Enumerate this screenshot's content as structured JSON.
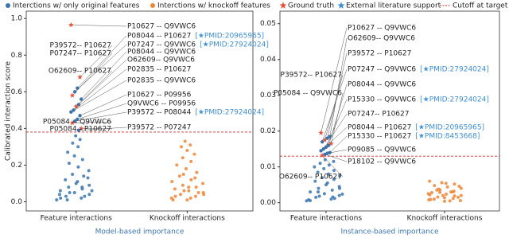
{
  "legend": [
    {
      "name": "Interctions w/ only original features",
      "color": "#3b75af",
      "marker": "circle"
    },
    {
      "name": "Interctions w/ knockoff features",
      "color": "#ef8636",
      "marker": "circle"
    },
    {
      "name": "Ground truth",
      "color": "#e8503a",
      "marker": "star"
    },
    {
      "name": "External literature support",
      "color": "#3d8fd6",
      "marker": "star"
    },
    {
      "name": "Cutoff at target FDR level",
      "color": "#d62728",
      "marker": "dash"
    }
  ],
  "chart_data": [
    {
      "type": "strip",
      "ylabel": "Calibrated interaction score",
      "xlabel": "Model-based importance",
      "xlabel_color": "#3b75af",
      "categories": [
        "Feature interactions",
        "Knockoff interactions"
      ],
      "ylim": [
        -0.05,
        1.04
      ],
      "yticks": [
        {
          "value": 0,
          "label": "0.0"
        },
        {
          "value": 0.2,
          "label": "0.2"
        },
        {
          "value": 0.4,
          "label": "0.4"
        },
        {
          "value": 0.6,
          "label": "0.6"
        },
        {
          "value": 0.8,
          "label": "0.8"
        },
        {
          "value": 1,
          "label": "1.0"
        }
      ],
      "cutoff": 0.38,
      "series": [
        {
          "name": "Interctions w/ only original features",
          "color": "#3b75af",
          "values": [
            0.01,
            0.02,
            0.03,
            0.04,
            0.05,
            0.06,
            0.07,
            0.08,
            0.09,
            0.1,
            0.02,
            0.03,
            0.05,
            0.06,
            0.11,
            0.12,
            0.14,
            0.15,
            0.17,
            0.19,
            0.21,
            0.23,
            0.25,
            0.27,
            0.3,
            0.32,
            0.34,
            0.36,
            0.04,
            0.08,
            0.01,
            0.13
          ]
        },
        {
          "name": "Interctions w/ knockoff features",
          "color": "#ef8636",
          "values": [
            0.01,
            0.02,
            0.03,
            0.04,
            0.05,
            0.06,
            0.07,
            0.08,
            0.09,
            0.1,
            0.02,
            0.03,
            0.05,
            0.06,
            0.11,
            0.12,
            0.14,
            0.16,
            0.18,
            0.2,
            0.22,
            0.24,
            0.26,
            0.28,
            0.3,
            0.31,
            0.33,
            0.04,
            0.08,
            0.01,
            0.13,
            0.15
          ]
        }
      ],
      "annotations": [
        {
          "label": "P10627 -- Q9VWC6",
          "value": 0.965,
          "marker": "star",
          "color": "#e8503a"
        },
        {
          "label": "P39572-- P10627",
          "value": 0.68,
          "marker": "star",
          "color": "#e8503a"
        },
        {
          "label": "P08044 -- P10627",
          "pmid": "[★PMID:20965965]",
          "value": 0.62,
          "marker": "circle",
          "color": "#3b75af"
        },
        {
          "label": "P07247 -- Q9VWC6",
          "pmid": "[★PMID:27924024]",
          "value": 0.6,
          "marker": "circle",
          "color": "#3b75af"
        },
        {
          "label": "P07247-- P10627",
          "value": 0.58,
          "marker": "star",
          "color": "#e8503a"
        },
        {
          "label": "P08044 -- Q9VWC6",
          "value": 0.56,
          "marker": "circle",
          "color": "#3b75af"
        },
        {
          "label": "O62609-- Q9VWC6",
          "value": 0.53,
          "marker": "circle",
          "color": "#3b75af"
        },
        {
          "label": "O62609-- P10627",
          "value": 0.52,
          "marker": "star",
          "color": "#e8503a"
        },
        {
          "label": "P02835 -- P10627",
          "value": 0.5,
          "marker": "circle",
          "color": "#3b75af"
        },
        {
          "label": "P02835 -- Q9VWC6",
          "value": 0.49,
          "marker": "circle",
          "color": "#3b75af"
        },
        {
          "label": "P10627 -- P09956",
          "value": 0.47,
          "marker": "circle",
          "color": "#3b75af"
        },
        {
          "label": "Q9VWC6 -- P09956",
          "value": 0.45,
          "marker": "circle",
          "color": "#3b75af"
        },
        {
          "label": "P39572 -- P08044",
          "pmid": "[★PMID:27924024]",
          "value": 0.44,
          "marker": "circle",
          "color": "#3b75af"
        },
        {
          "label": "P05084 -- Q9VWC6",
          "value": 0.43,
          "marker": "star",
          "color": "#e8503a"
        },
        {
          "label": "P05084-- P10627",
          "value": 0.4,
          "marker": "star",
          "color": "#e8503a"
        },
        {
          "label": "P39572 -- P07247",
          "value": 0.39,
          "marker": "circle",
          "color": "#3b75af"
        }
      ]
    },
    {
      "type": "strip",
      "xlabel": "Instance-based importance",
      "xlabel_color": "#3b75af",
      "categories": [
        "Feature interactions",
        "Knockoff interactions"
      ],
      "ylim": [
        -0.0023,
        0.0535
      ],
      "yticks": [
        {
          "value": 0,
          "label": "0.00"
        },
        {
          "value": 0.01,
          "label": "0.01"
        },
        {
          "value": 0.02,
          "label": "0.02"
        },
        {
          "value": 0.03,
          "label": "0.03"
        },
        {
          "value": 0.04,
          "label": "0.04"
        },
        {
          "value": 0.05,
          "label": "0.05"
        }
      ],
      "cutoff": 0.013,
      "series": [
        {
          "name": "Interctions w/ only original features",
          "color": "#3b75af",
          "values": [
            0.0005,
            0.001,
            0.0015,
            0.002,
            0.0025,
            0.003,
            0.0035,
            0.004,
            0.0045,
            0.005,
            0.0006,
            0.0012,
            0.0018,
            0.0024,
            0.0055,
            0.006,
            0.0065,
            0.007,
            0.0075,
            0.008,
            0.0085,
            0.009,
            0.0095,
            0.01,
            0.0105,
            0.011,
            0.0115,
            0.012,
            0.0008,
            0.0016,
            0.003,
            0.004
          ]
        },
        {
          "name": "Interctions w/ knockoff features",
          "color": "#ef8636",
          "values": [
            0.0004,
            0.0008,
            0.0012,
            0.0016,
            0.002,
            0.0024,
            0.0028,
            0.0032,
            0.0036,
            0.004,
            0.0044,
            0.0048,
            0.0052,
            0.0056,
            0.006,
            0.0005,
            0.001,
            0.0015,
            0.002,
            0.0025,
            0.003,
            0.0035,
            0.0006,
            0.0014,
            0.0022,
            0.003,
            0.0038,
            0.0046,
            0.0054,
            0.0009,
            0.0019,
            0.0029
          ]
        }
      ],
      "annotations": [
        {
          "label": "P10627 -- Q9VWC6",
          "value": 0.0195,
          "marker": "star",
          "color": "#e8503a"
        },
        {
          "label": "O62609-- Q9VWC6",
          "value": 0.0185,
          "marker": "circle",
          "color": "#3b75af"
        },
        {
          "label": "P39572 -- P10627",
          "value": 0.018,
          "marker": "circle",
          "color": "#3b75af"
        },
        {
          "label": "P39572-- P10627",
          "value": 0.0175,
          "marker": "star",
          "color": "#e8503a"
        },
        {
          "label": "P07247 -- Q9VWC6",
          "pmid": "[★PMID:27924024]",
          "value": 0.017,
          "marker": "circle",
          "color": "#3b75af"
        },
        {
          "label": "P05084 -- Q9VWC6",
          "value": 0.0165,
          "marker": "star",
          "color": "#e8503a"
        },
        {
          "label": "P08044 -- Q9VWC6",
          "value": 0.016,
          "marker": "circle",
          "color": "#3b75af"
        },
        {
          "label": "P15330 -- Q9VWC6",
          "pmid": "[★PMID:27924024]",
          "value": 0.0155,
          "marker": "circle",
          "color": "#3b75af"
        },
        {
          "label": "P07247-- P10627",
          "value": 0.015,
          "marker": "circle",
          "color": "#3b75af"
        },
        {
          "label": "P08044 -- P10627",
          "pmid": "[★PMID:20965965]",
          "value": 0.0145,
          "marker": "circle",
          "color": "#3b75af"
        },
        {
          "label": "P15330 -- P10627",
          "pmid": "[★PMID:8453668]",
          "value": 0.014,
          "marker": "circle",
          "color": "#3b75af"
        },
        {
          "label": "P09085 -- Q9VWC6",
          "value": 0.0138,
          "marker": "circle",
          "color": "#3b75af"
        },
        {
          "label": "P18102 -- Q9VWC6",
          "value": 0.0135,
          "marker": "circle",
          "color": "#3b75af"
        },
        {
          "label": "O62609-- P10627",
          "value": 0.0132,
          "marker": "star",
          "color": "#e8503a"
        }
      ]
    }
  ]
}
